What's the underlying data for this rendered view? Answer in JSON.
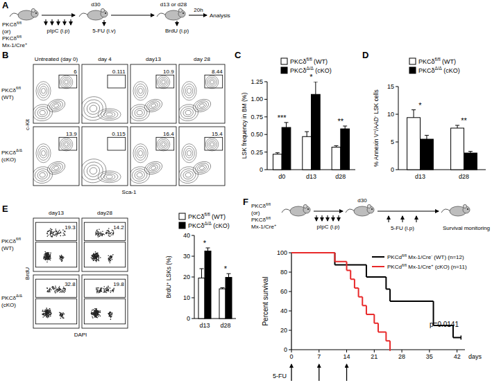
{
  "panel_labels": [
    "A",
    "B",
    "C",
    "D",
    "E",
    "F"
  ],
  "schematic_a": {
    "strain_lines": [
      [
        "PKCδ",
        {
          "sup": "fl/fl"
        }
      ],
      [
        "(or)"
      ],
      [
        "PKCδ",
        {
          "sup": "fl/fl"
        }
      ],
      [
        "Mx-1/Cre",
        {
          "sup": "+"
        }
      ]
    ],
    "treatment": "pIpC (i.p)",
    "interval": "d30",
    "injection": "5-FU (i.v)",
    "timepoints": "d13 or d28",
    "label": "BrdU (i.p)",
    "pulse": "20h",
    "endpoint": "Analysis"
  },
  "flow_b": {
    "columns": [
      "Untreated (day 0)",
      "day 4",
      "day13",
      "day 28"
    ],
    "rows": [
      [
        [
          "PKCδ",
          {
            "sup": "fl/fl"
          }
        ],
        [
          "(WT)"
        ]
      ],
      [
        [
          "PKCδ",
          {
            "sup": "Δ/Δ"
          }
        ],
        [
          "(cKO)"
        ]
      ]
    ],
    "gates": [
      [
        6,
        0.111,
        10.9,
        8.44
      ],
      [
        13.9,
        0.115,
        16.4,
        15.4
      ]
    ],
    "x_label": "Sca-1",
    "y_label": "c-Kit"
  },
  "flow_e": {
    "columns": [
      "day13",
      "day28"
    ],
    "rows": [
      [
        [
          "PKCδ",
          {
            "sup": "fl/fl"
          }
        ],
        [
          "(WT)"
        ]
      ],
      [
        [
          "PKCδ",
          {
            "sup": "Δ/Δ"
          }
        ],
        [
          "(cKO)"
        ]
      ]
    ],
    "gates": [
      [
        19.3,
        14.2
      ],
      [
        32.8,
        19.8
      ]
    ],
    "x_label": "DAPI",
    "y_label": "BrdU"
  },
  "schematic_f": {
    "strain_lines": [
      [
        "PKCδ",
        {
          "sup": "fl/fl"
        }
      ],
      [
        "(or)"
      ],
      [
        "PKCδ",
        {
          "sup": "fl/fl"
        }
      ],
      [
        "Mx-1/Cre",
        {
          "sup": "+"
        }
      ]
    ],
    "treatment": "pIpC (i.p)",
    "interval": "d30",
    "injection": "5-FU (i.p)",
    "endpoint": "Survival monitoring"
  },
  "chart_data": [
    {
      "type": "bar",
      "y_label": [
        "LSK frequency in BM (%)"
      ],
      "categories": [
        "d0",
        "d13",
        "d28"
      ],
      "series": [
        {
          "name": [
            "PKCδ",
            {
              "sup": "fl/fl"
            },
            " (WT)"
          ],
          "color": "#ffffff",
          "values": [
            0.22,
            0.47,
            0.32
          ],
          "errors": [
            0.02,
            0.07,
            0.02
          ]
        },
        {
          "name": [
            "PKCδ",
            {
              "sup": "Δ/Δ"
            },
            " (cKO)"
          ],
          "color": "#000000",
          "values": [
            0.6,
            1.07,
            0.58
          ],
          "errors": [
            0.07,
            0.18,
            0.04
          ]
        }
      ],
      "ylim": [
        0,
        1.25
      ],
      "yticks": [
        0,
        {
          "value": 0.25,
          "label": "0.25"
        },
        {
          "value": 0.5,
          "label": "0.50"
        },
        {
          "value": 0.75,
          "label": "0.75"
        },
        {
          "value": 1,
          "label": "1.00"
        },
        {
          "value": 1.25,
          "label": "1.25"
        }
      ],
      "annotations": [
        "***",
        "*",
        "**"
      ],
      "legend": "top"
    },
    {
      "type": "bar",
      "y_label": [
        "% Annexin V",
        {
          "sup": "+"
        },
        "/AAD",
        {
          "sup": "-"
        },
        " LSK cells"
      ],
      "categories": [
        "d13",
        "d28"
      ],
      "series": [
        {
          "name": [
            "PKCδ",
            {
              "sup": "fl/fl"
            },
            " (WT)"
          ],
          "color": "#ffffff",
          "values": [
            9.4,
            7.5
          ],
          "errors": [
            1.4,
            0.5
          ]
        },
        {
          "name": [
            "PKCδ",
            {
              "sup": "Δ/Δ"
            },
            " (cKO)"
          ],
          "color": "#000000",
          "values": [
            5.5,
            3.0
          ],
          "errors": [
            0.7,
            0.3
          ]
        }
      ],
      "ylim": [
        0,
        15
      ],
      "yticks": [
        0,
        5,
        10,
        15
      ],
      "annotations": [
        "*",
        "**"
      ],
      "legend": "top"
    },
    {
      "type": "bar",
      "y_label": [
        "BrdU",
        {
          "sup": "+"
        },
        " LSKs (%)"
      ],
      "categories": [
        "d13",
        "d28"
      ],
      "series": [
        {
          "name": [
            "PKCδ",
            {
              "sup": "fl/fl"
            },
            " (WT)"
          ],
          "color": "#ffffff",
          "values": [
            19.5,
            14.3
          ],
          "errors": [
            4.5,
            0.5
          ]
        },
        {
          "name": [
            "PKCδ",
            {
              "sup": "Δ/Δ"
            },
            " (cKO)"
          ],
          "color": "#000000",
          "values": [
            32.5,
            19.8
          ],
          "errors": [
            1.5,
            1.8
          ]
        }
      ],
      "ylim": [
        0,
        40
      ],
      "yticks": [
        0,
        10,
        20,
        30,
        40
      ],
      "annotations": [
        "*",
        "*"
      ],
      "legend": "top"
    },
    {
      "type": "line",
      "line_style": "step",
      "x_label": "days",
      "y_label": [
        "Percent survival"
      ],
      "series": [
        {
          "name": [
            "PKCd",
            {
              "sup": "fl/fl"
            },
            " Mx-1/Cre",
            {
              "sup": "-"
            },
            " (WT) (n=12)"
          ],
          "color": "#000000",
          "x": [
            0,
            11,
            19,
            24,
            25,
            36,
            41,
            43
          ],
          "values": [
            100,
            87.5,
            75,
            62.5,
            50,
            25,
            12.5,
            12.5
          ]
        },
        {
          "name": [
            "PKCd",
            {
              "sup": "fl/fl"
            },
            " Mx-1/Cre",
            {
              "sup": "+"
            },
            " (cKO) (n=11)"
          ],
          "color": "#e8292a",
          "x": [
            0,
            11,
            14,
            15,
            16,
            17,
            18,
            19,
            21,
            22,
            24,
            25
          ],
          "values": [
            100,
            90.9,
            81.8,
            72.7,
            63.6,
            54.5,
            45.5,
            36.4,
            27.3,
            18.2,
            9.1,
            0
          ]
        }
      ],
      "xlim": [
        0,
        44
      ],
      "xticks": [
        0,
        7,
        14,
        21,
        28,
        35,
        42
      ],
      "ylim": [
        0,
        100
      ],
      "yticks": [
        0,
        20,
        40,
        60,
        80,
        100
      ],
      "annotations": [
        {
          "text": "p=0.0141"
        },
        {
          "text": "5-FU",
          "x": [
            0,
            7,
            14
          ]
        }
      ],
      "legend": "top-right"
    }
  ]
}
